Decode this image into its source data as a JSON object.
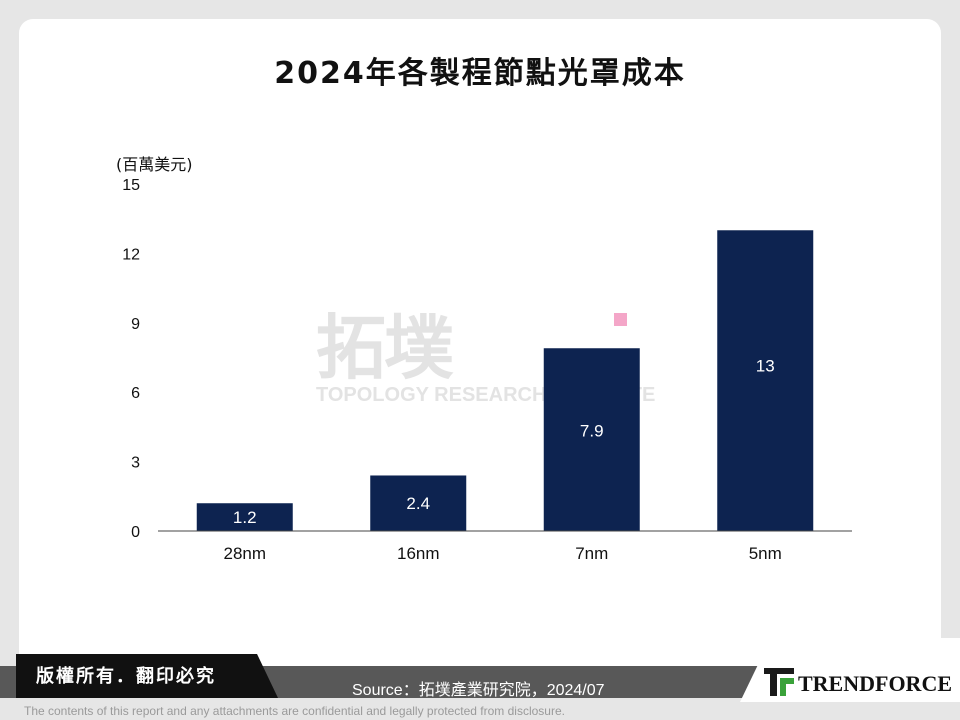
{
  "footer": {
    "copyright": "版權所有．翻印必究",
    "source": "Source：拓墣產業研究院，2024/07",
    "logo_text": "TRENDFORCE",
    "disclaimer": "The contents of this report and any attachments are confidential and legally protected from disclosure."
  },
  "watermark": {
    "chinese": "拓墣",
    "english": "TOPOLOGY RESEARCH INSTITUTE"
  },
  "colors": {
    "bar": "#0d2350",
    "accent": "#f4a6c8"
  },
  "chart_data": {
    "type": "bar",
    "title": "2024年各製程節點光罩成本",
    "ylabel": "(百萬美元)",
    "xlabel": "",
    "categories": [
      "28nm",
      "16nm",
      "7nm",
      "5nm"
    ],
    "values": [
      1.2,
      2.4,
      7.9,
      13
    ],
    "value_labels": [
      "1.2",
      "2.4",
      "7.9",
      "13"
    ],
    "ylim": [
      0,
      15
    ],
    "yticks": [
      0,
      3,
      6,
      9,
      12,
      15
    ],
    "grid": false,
    "legend": "none"
  }
}
